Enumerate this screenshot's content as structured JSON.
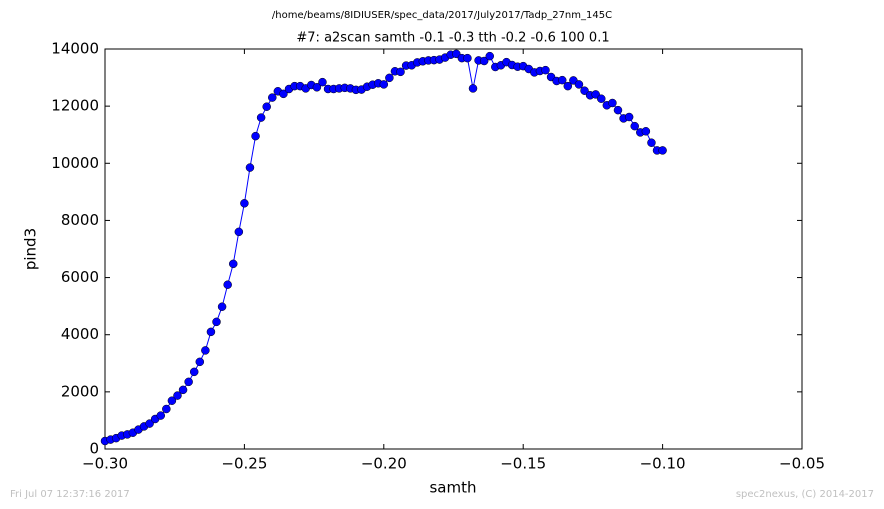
{
  "chart_data": {
    "type": "line",
    "suptitle": "/home/beams/8IDIUSER/spec_data/2017/July2017/Tadp_27nm_145C",
    "title": "#7: a2scan  samth -0.1 -0.3  tth -0.2 -0.6  100 0.1",
    "xlabel": "samth",
    "ylabel": "pind3",
    "annotations": [
      "Fri Jul 07 12:37:16 2017",
      "spec2nexus, (C) 2014-2017"
    ],
    "xlim": [
      -0.3,
      -0.05
    ],
    "ylim": [
      0,
      14000
    ],
    "xticks": [
      {
        "value": -0.3,
        "label": "−0.30"
      },
      {
        "value": -0.25,
        "label": "−0.25"
      },
      {
        "value": -0.2,
        "label": "−0.20"
      },
      {
        "value": -0.15,
        "label": "−0.15"
      },
      {
        "value": -0.1,
        "label": "−0.10"
      },
      {
        "value": -0.05,
        "label": "−0.05"
      }
    ],
    "yticks": [
      0,
      2000,
      4000,
      6000,
      8000,
      10000,
      12000,
      14000
    ],
    "x": [
      -0.3,
      -0.298,
      -0.296,
      -0.294,
      -0.292,
      -0.29,
      -0.288,
      -0.286,
      -0.284,
      -0.282,
      -0.28,
      -0.278,
      -0.276,
      -0.274,
      -0.272,
      -0.27,
      -0.268,
      -0.266,
      -0.264,
      -0.262,
      -0.26,
      -0.258,
      -0.256,
      -0.254,
      -0.252,
      -0.25,
      -0.248,
      -0.246,
      -0.244,
      -0.242,
      -0.24,
      -0.238,
      -0.236,
      -0.234,
      -0.232,
      -0.23,
      -0.228,
      -0.226,
      -0.224,
      -0.222,
      -0.22,
      -0.218,
      -0.216,
      -0.214,
      -0.212,
      -0.21,
      -0.208,
      -0.206,
      -0.204,
      -0.202,
      -0.2,
      -0.198,
      -0.196,
      -0.194,
      -0.192,
      -0.19,
      -0.188,
      -0.186,
      -0.184,
      -0.182,
      -0.18,
      -0.178,
      -0.176,
      -0.174,
      -0.172,
      -0.17,
      -0.168,
      -0.166,
      -0.164,
      -0.162,
      -0.16,
      -0.158,
      -0.156,
      -0.154,
      -0.152,
      -0.15,
      -0.148,
      -0.146,
      -0.144,
      -0.142,
      -0.14,
      -0.138,
      -0.136,
      -0.134,
      -0.132,
      -0.13,
      -0.128,
      -0.126,
      -0.124,
      -0.122,
      -0.12,
      -0.118,
      -0.116,
      -0.114,
      -0.112,
      -0.11,
      -0.108,
      -0.106,
      -0.104,
      -0.102,
      -0.1
    ],
    "series": [
      {
        "name": "pind3",
        "color": "#0000ff",
        "values": [
          280,
          330,
          380,
          470,
          510,
          570,
          680,
          790,
          890,
          1050,
          1170,
          1400,
          1690,
          1870,
          2070,
          2350,
          2700,
          3050,
          3450,
          4100,
          4450,
          4980,
          5750,
          6480,
          7600,
          8600,
          9850,
          10950,
          11600,
          11980,
          12300,
          12520,
          12430,
          12600,
          12700,
          12700,
          12620,
          12740,
          12660,
          12840,
          12600,
          12600,
          12620,
          12640,
          12620,
          12570,
          12580,
          12680,
          12750,
          12800,
          12760,
          12990,
          13220,
          13200,
          13420,
          13430,
          13530,
          13570,
          13600,
          13610,
          13630,
          13700,
          13800,
          13830,
          13680,
          13680,
          12620,
          13600,
          13580,
          13750,
          13370,
          13430,
          13540,
          13440,
          13380,
          13400,
          13300,
          13180,
          13230,
          13260,
          13020,
          12880,
          12910,
          12700,
          12900,
          12760,
          12540,
          12380,
          12410,
          12260,
          12030,
          12110,
          11860,
          11570,
          11620,
          11300,
          11080,
          11120,
          10720,
          10450,
          10450
        ]
      }
    ]
  }
}
